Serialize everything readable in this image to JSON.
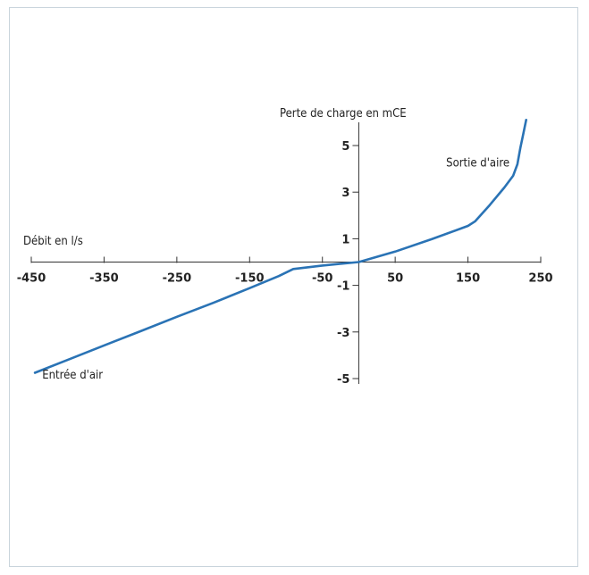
{
  "chart_data": {
    "type": "line",
    "title": "",
    "xlabel": "Débit en l/s",
    "ylabel": "Perte de charge en mCE",
    "xlim": [
      -450,
      250
    ],
    "ylim": [
      -5,
      6
    ],
    "x_ticks": [
      -450,
      -350,
      -250,
      -150,
      -50,
      50,
      150,
      250
    ],
    "x_tick_labels": [
      "-450",
      "-350",
      "-250",
      "-150",
      "-50",
      "50",
      "150",
      "250"
    ],
    "y_ticks": [
      5,
      3,
      1,
      -1,
      -3,
      -5
    ],
    "y_tick_labels": [
      "5",
      "3",
      "1",
      "-1",
      "-3",
      "-5"
    ],
    "grid": false,
    "series": [
      {
        "color": "#2a73b5",
        "x": [
          -445,
          -400,
          -350,
          -300,
          -250,
          -200,
          -150,
          -110,
          -90,
          -50,
          0,
          50,
          100,
          150,
          160,
          180,
          200,
          212,
          218,
          222,
          226,
          230
        ],
        "y": [
          -4.75,
          -4.2,
          -3.58,
          -2.97,
          -2.35,
          -1.75,
          -1.12,
          -0.6,
          -0.3,
          -0.15,
          0.0,
          0.45,
          0.98,
          1.55,
          1.75,
          2.45,
          3.2,
          3.7,
          4.2,
          4.9,
          5.5,
          6.1
        ]
      }
    ],
    "annotations": [
      {
        "text": "Sortie d'aire",
        "x": 120,
        "y": 4.1
      },
      {
        "text": "Entrée d'air",
        "x": -435,
        "y": -5.0
      }
    ]
  }
}
